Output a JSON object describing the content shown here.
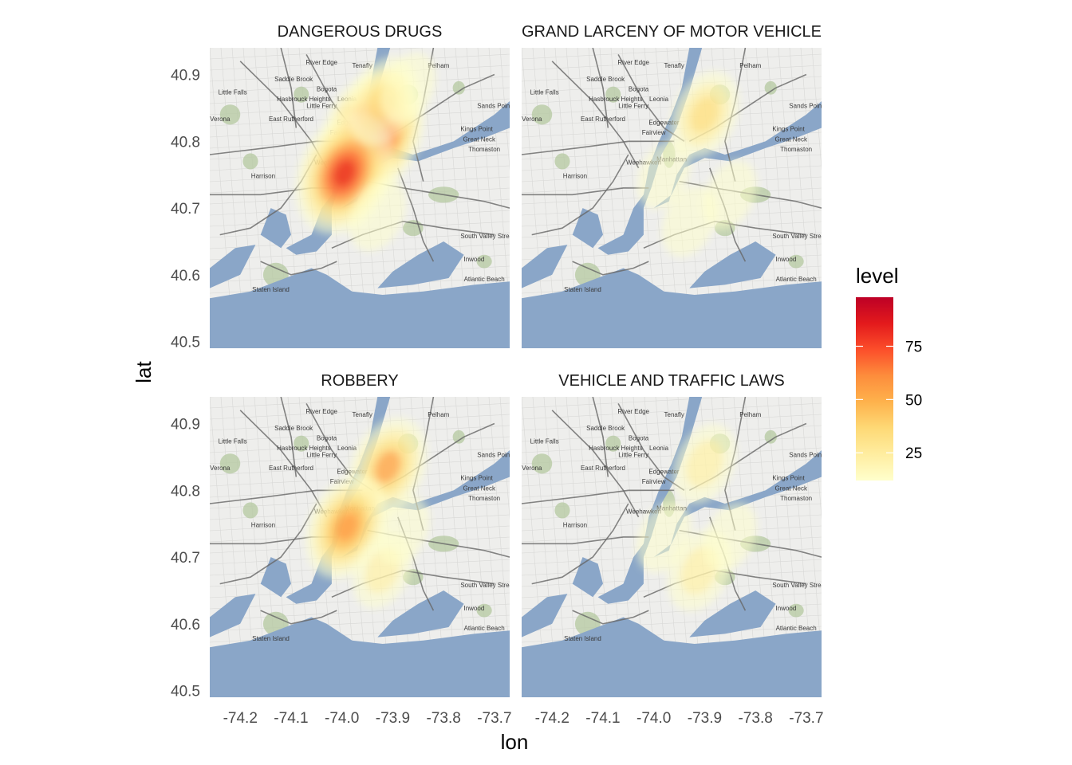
{
  "chart_data": {
    "type": "heatmap",
    "facets": [
      {
        "title": "DANGEROUS DRUGS",
        "hotspots": [
          {
            "lon": -73.94,
            "lat": 40.812,
            "level": 98
          },
          {
            "lon": -73.995,
            "lat": 40.752,
            "level": 88
          },
          {
            "lon": -73.92,
            "lat": 40.86,
            "level": 40
          },
          {
            "lon": -73.93,
            "lat": 40.69,
            "level": 18
          },
          {
            "lon": -73.87,
            "lat": 40.88,
            "level": 15
          }
        ]
      },
      {
        "title": "GRAND LARCENY OF MOTOR VEHICLE",
        "hotspots": [
          {
            "lon": -73.9,
            "lat": 40.84,
            "level": 38
          },
          {
            "lon": -73.93,
            "lat": 40.68,
            "level": 15
          },
          {
            "lon": -73.85,
            "lat": 40.72,
            "level": 12
          },
          {
            "lon": -73.98,
            "lat": 40.75,
            "level": 12
          }
        ]
      },
      {
        "title": "ROBBERY",
        "hotspots": [
          {
            "lon": -73.91,
            "lat": 40.835,
            "level": 55
          },
          {
            "lon": -73.99,
            "lat": 40.745,
            "level": 62
          },
          {
            "lon": -73.92,
            "lat": 40.68,
            "level": 22
          },
          {
            "lon": -73.88,
            "lat": 40.74,
            "level": 12
          }
        ]
      },
      {
        "title": "VEHICLE AND TRAFFIC LAWS",
        "hotspots": [
          {
            "lon": -73.9,
            "lat": 40.84,
            "level": 28
          },
          {
            "lon": -73.91,
            "lat": 40.68,
            "level": 30
          },
          {
            "lon": -73.98,
            "lat": 40.73,
            "level": 15
          },
          {
            "lon": -73.85,
            "lat": 40.73,
            "level": 12
          }
        ]
      }
    ],
    "xlabel": "lon",
    "ylabel": "lat",
    "x_ticks": [
      -74.2,
      -74.1,
      -74.0,
      -73.9,
      -73.8,
      -73.7
    ],
    "x_tick_labels": [
      "-74.2",
      "-74.1",
      "-74.0",
      "-73.9",
      "-73.8",
      "-73.7"
    ],
    "y_ticks": [
      40.5,
      40.6,
      40.7,
      40.8,
      40.9
    ],
    "y_tick_labels": [
      "40.5",
      "40.6",
      "40.7",
      "40.8",
      "40.9"
    ],
    "xlim": [
      -74.26,
      -73.67
    ],
    "ylim": [
      40.49,
      40.94
    ],
    "legend": {
      "title": "level",
      "ticks": [
        25,
        50,
        75
      ],
      "tick_labels": [
        "25",
        "50",
        "75"
      ],
      "range": [
        12,
        98
      ],
      "colors": [
        "#ffffcc",
        "#ffeda0",
        "#fed976",
        "#feb24c",
        "#fd8d3c",
        "#fc4e2a",
        "#e31a1c",
        "#bd0026"
      ],
      "placement": "right"
    },
    "basemap": {
      "water_color": "#8aa6c8",
      "land_color": "#eeeeec",
      "park_color": "#b4c8a0",
      "road_color": "#666666",
      "place_labels": [
        "Tenafly",
        "River Edge",
        "Saddle Brook",
        "Bogota",
        "Leonia",
        "Pelham",
        "Little Falls",
        "Hasbrouck Heights",
        "Little Ferry",
        "Verona",
        "East Rutherford",
        "Edgewater",
        "Fairview",
        "Sands Point",
        "Kings Point",
        "Great Neck",
        "Thomaston",
        "Manhattan",
        "Weehawken",
        "Harrison",
        "Staten Island",
        "South Valley Stream",
        "Inwood",
        "Atlantic Beach"
      ]
    }
  }
}
